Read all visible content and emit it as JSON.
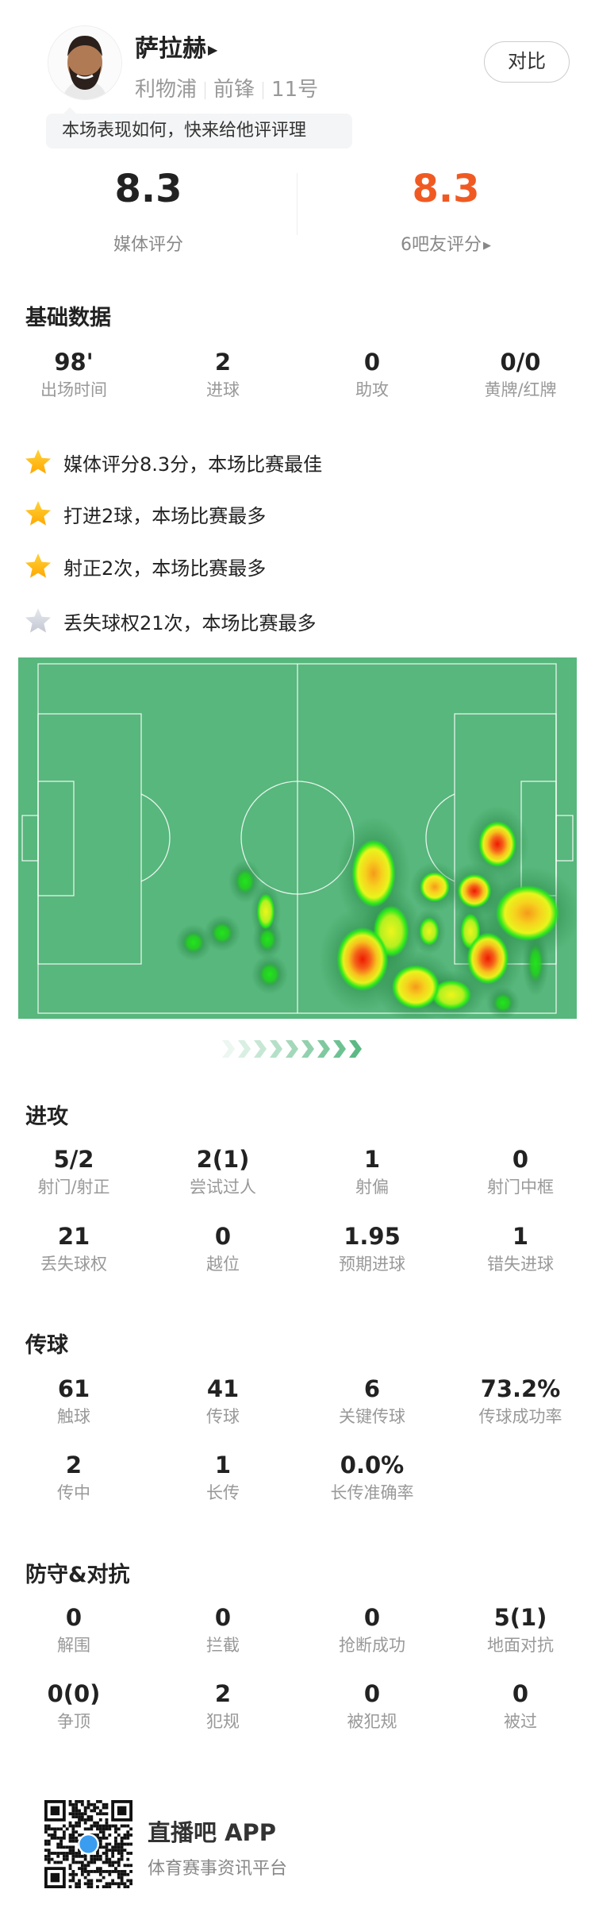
{
  "player": {
    "name": "萨拉赫",
    "team": "利物浦",
    "position": "前锋",
    "number": "11号",
    "compare_label": "对比",
    "prompt": "本场表现如何，快来给他评评理"
  },
  "ratings": {
    "media": {
      "value": "8.3",
      "label": "媒体评分"
    },
    "fans": {
      "value": "8.3",
      "label": "6吧友评分"
    },
    "fans_color": "#f05a22"
  },
  "basic": {
    "title": "基础数据",
    "items": [
      {
        "value": "98'",
        "label": "出场时间"
      },
      {
        "value": "2",
        "label": "进球"
      },
      {
        "value": "0",
        "label": "助攻"
      },
      {
        "value": "0/0",
        "label": "黄牌/红牌"
      }
    ]
  },
  "highlights": [
    {
      "text": "媒体评分8.3分，本场比赛最佳",
      "star": "gold"
    },
    {
      "text": "打进2球，本场比赛最多",
      "star": "gold"
    },
    {
      "text": "射正2次，本场比赛最多",
      "star": "gold"
    },
    {
      "text": "丢失球权21次，本场比赛最多",
      "star": "silver"
    }
  ],
  "heatmap": {
    "pitch_color": "#57b77c"
  },
  "attack": {
    "title": "进攻",
    "items": [
      {
        "value": "5/2",
        "label": "射门/射正"
      },
      {
        "value": "2(1)",
        "label": "尝试过人"
      },
      {
        "value": "1",
        "label": "射偏"
      },
      {
        "value": "0",
        "label": "射门中框"
      },
      {
        "value": "21",
        "label": "丢失球权"
      },
      {
        "value": "0",
        "label": "越位"
      },
      {
        "value": "1.95",
        "label": "预期进球"
      },
      {
        "value": "1",
        "label": "错失进球"
      }
    ]
  },
  "passing": {
    "title": "传球",
    "items": [
      {
        "value": "61",
        "label": "触球"
      },
      {
        "value": "41",
        "label": "传球"
      },
      {
        "value": "6",
        "label": "关键传球"
      },
      {
        "value": "73.2%",
        "label": "传球成功率"
      },
      {
        "value": "2",
        "label": "传中"
      },
      {
        "value": "1",
        "label": "长传"
      },
      {
        "value": "0.0%",
        "label": "长传准确率"
      }
    ]
  },
  "defense": {
    "title": "防守&对抗",
    "items": [
      {
        "value": "0",
        "label": "解围"
      },
      {
        "value": "0",
        "label": "拦截"
      },
      {
        "value": "0",
        "label": "抢断成功"
      },
      {
        "value": "5(1)",
        "label": "地面对抗"
      },
      {
        "value": "0(0)",
        "label": "争顶"
      },
      {
        "value": "2",
        "label": "犯规"
      },
      {
        "value": "0",
        "label": "被犯规"
      },
      {
        "value": "0",
        "label": "被过"
      }
    ]
  },
  "footer": {
    "app_name": "直播吧 APP",
    "tagline": "体育赛事资讯平台"
  }
}
